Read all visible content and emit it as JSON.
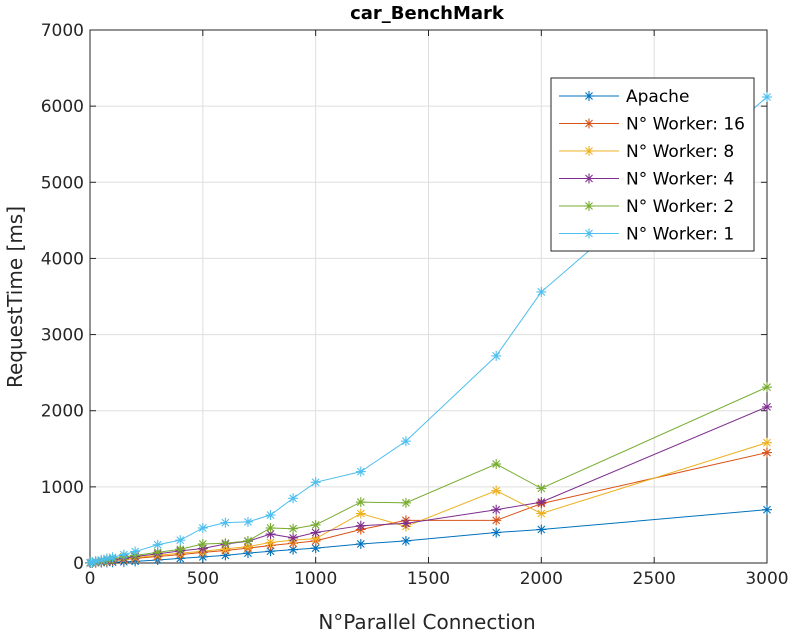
{
  "chart_data": {
    "type": "line",
    "title": "car_BenchMark",
    "xlabel": "N°Parallel Connection",
    "ylabel": "RequestTime [ms]",
    "xlim": [
      0,
      3000
    ],
    "ylim": [
      0,
      7000
    ],
    "xticks": [
      0,
      500,
      1000,
      1500,
      2000,
      2500,
      3000
    ],
    "yticks": [
      0,
      1000,
      2000,
      3000,
      4000,
      5000,
      6000,
      7000
    ],
    "grid": true,
    "legend_position": "top-right",
    "x": [
      1,
      10,
      25,
      50,
      75,
      100,
      150,
      200,
      300,
      400,
      500,
      600,
      700,
      800,
      900,
      1000,
      1200,
      1400,
      1800,
      2000,
      3000
    ],
    "series": [
      {
        "name": "Apache",
        "color": "#0072BD",
        "values": [
          1,
          2,
          4,
          6,
          8,
          10,
          15,
          22,
          40,
          60,
          80,
          100,
          130,
          155,
          175,
          195,
          250,
          290,
          400,
          440,
          700
        ]
      },
      {
        "name": "N° Worker: 16",
        "color": "#D95319",
        "values": [
          2,
          4,
          8,
          15,
          20,
          28,
          45,
          60,
          85,
          110,
          140,
          165,
          195,
          230,
          260,
          290,
          440,
          560,
          560,
          780,
          1450
        ]
      },
      {
        "name": "N° Worker: 8",
        "color": "#EDB120",
        "values": [
          3,
          5,
          10,
          18,
          25,
          35,
          50,
          70,
          100,
          130,
          155,
          185,
          215,
          270,
          300,
          320,
          650,
          480,
          950,
          650,
          1580
        ]
      },
      {
        "name": "N° Worker: 4",
        "color": "#7E2F8E",
        "values": [
          3,
          6,
          12,
          22,
          30,
          40,
          60,
          85,
          120,
          160,
          190,
          250,
          285,
          380,
          330,
          400,
          490,
          520,
          700,
          800,
          2050
        ]
      },
      {
        "name": "N° Worker: 2",
        "color": "#77AC30",
        "values": [
          4,
          8,
          15,
          28,
          40,
          55,
          80,
          100,
          140,
          180,
          250,
          260,
          290,
          460,
          450,
          500,
          800,
          790,
          1300,
          980,
          2310
        ]
      },
      {
        "name": "N° Worker: 1",
        "color": "#4DBEEE",
        "values": [
          5,
          12,
          25,
          40,
          60,
          75,
          110,
          150,
          240,
          300,
          460,
          530,
          540,
          630,
          850,
          1060,
          1200,
          1600,
          2720,
          3560,
          6120
        ]
      }
    ]
  }
}
